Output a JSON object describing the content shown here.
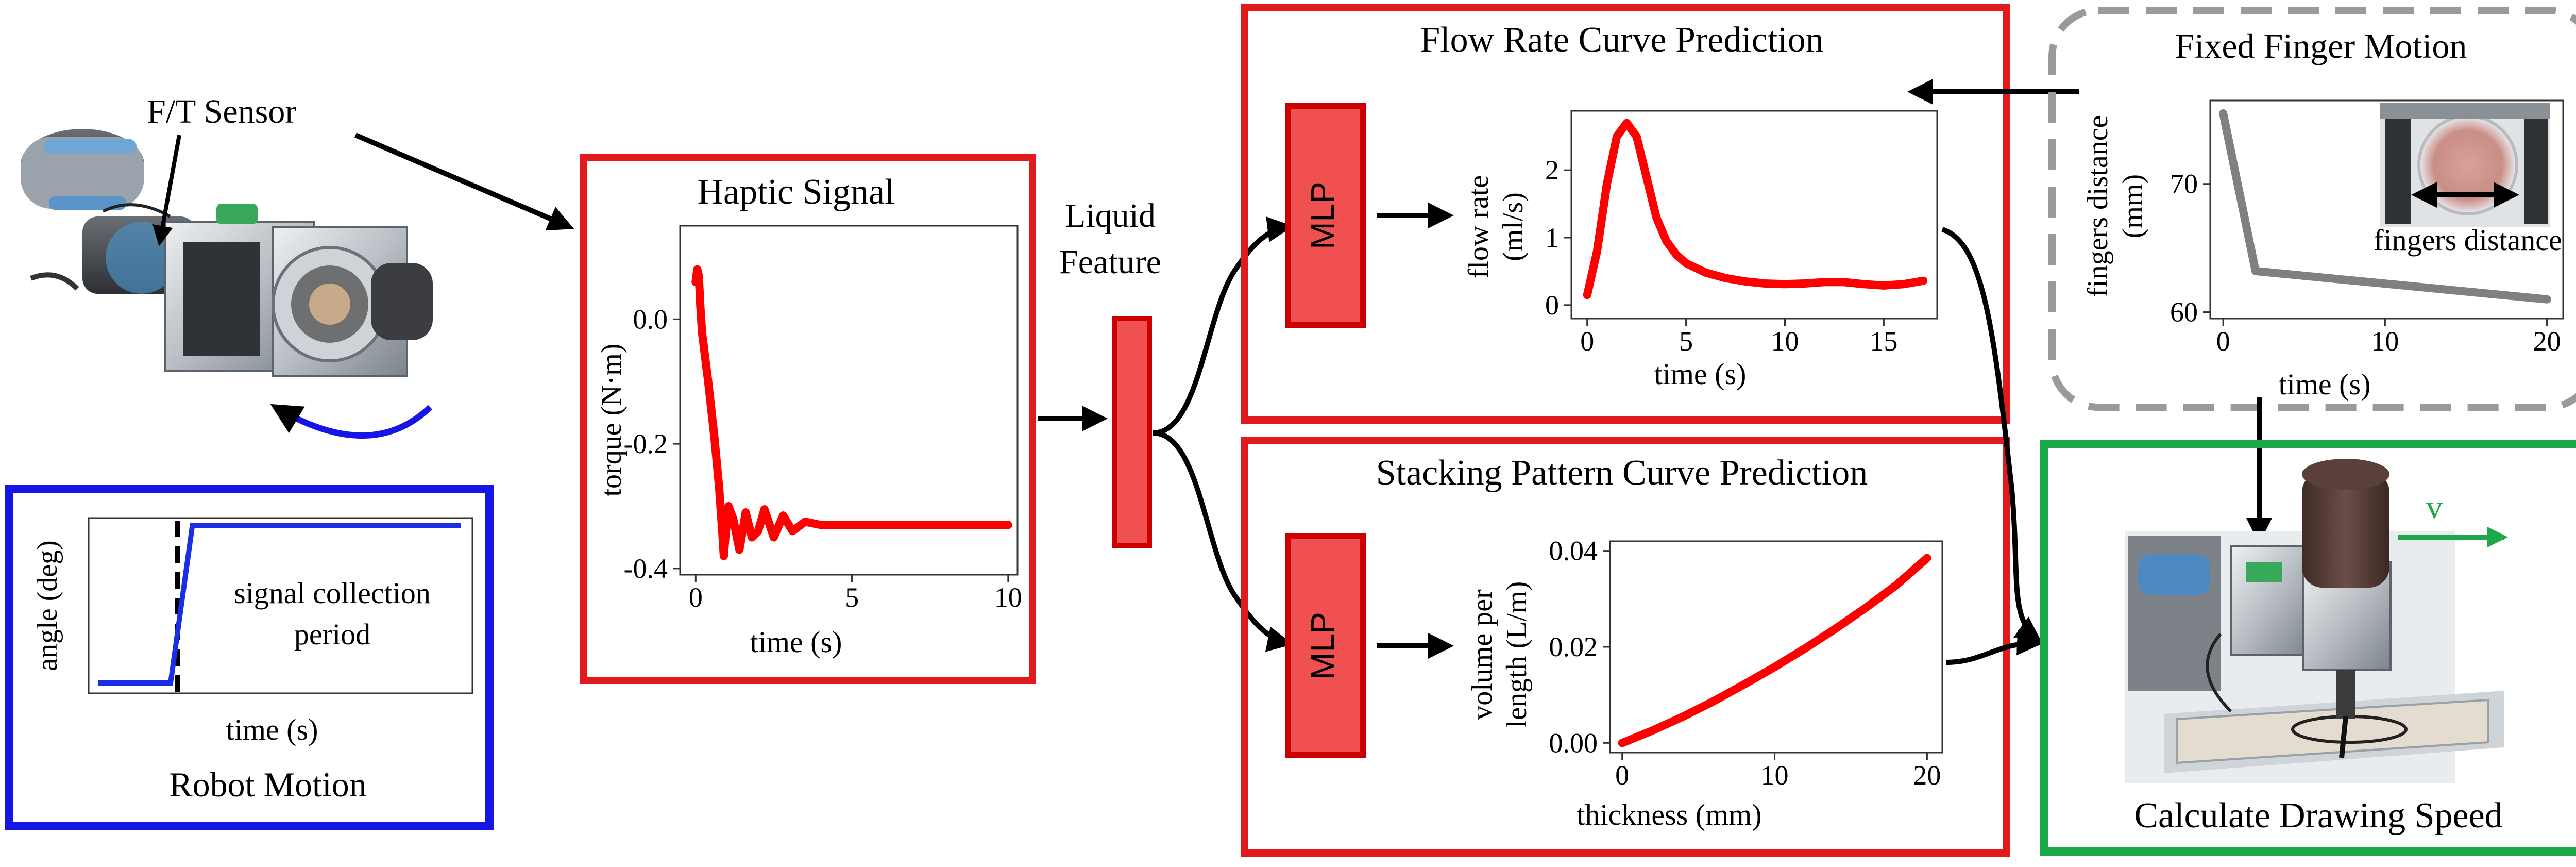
{
  "robot": {
    "sensor_label": "F/T Sensor",
    "motion_box": {
      "title": "Robot Motion",
      "ylabel": "angle (deg)",
      "xlabel": "time (s)",
      "annotation_line1": "signal collection",
      "annotation_line2": "period",
      "border_color": "#1515e6",
      "curve_color": "#1a2ee6"
    }
  },
  "haptic": {
    "title": "Haptic Signal",
    "border_color": "#e31a1c",
    "curve_color": "#ff0000"
  },
  "liquid_feature": {
    "line1": "Liquid",
    "line2": "Feature",
    "fill": "#f05050"
  },
  "flow_rate": {
    "title": "Flow Rate Curve Prediction",
    "mlp_label": "MLP",
    "border_color": "#e31a1c"
  },
  "stacking": {
    "title": "Stacking Pattern Curve Prediction",
    "mlp_label": "MLP",
    "border_color": "#e31a1c"
  },
  "finger": {
    "title": "Fixed Finger Motion",
    "inset_label": "fingers distance",
    "border_color": "#9a9a9a",
    "curve_color": "#808080"
  },
  "drawing": {
    "title": "Calculate Drawing Speed",
    "velocity_label": "v",
    "border_color": "#1fa84a",
    "arrow_color": "#1fa84a"
  },
  "chart_data": [
    {
      "id": "haptic",
      "type": "line",
      "xlabel": "time (s)",
      "ylabel": "torque (N·m)",
      "xlim": [
        -0.5,
        10.3
      ],
      "ylim": [
        -0.41,
        0.15
      ],
      "xticks": [
        "0",
        "5",
        "10"
      ],
      "yticks": [
        "0.0",
        "-0.2",
        "-0.4"
      ],
      "series": [
        {
          "x": [
            0,
            0.05,
            0.1,
            0.15,
            0.2,
            0.3,
            0.4,
            0.6,
            0.75,
            0.85,
            0.9,
            0.95,
            1.05,
            1.2,
            1.4,
            1.6,
            1.8,
            2.0,
            2.2,
            2.5,
            2.8,
            3.1,
            3.5,
            4.0,
            5.0,
            6.0,
            7.0,
            8.0,
            9.0,
            10.0
          ],
          "y": [
            0.06,
            0.08,
            0.07,
            0.02,
            -0.02,
            -0.06,
            -0.1,
            -0.19,
            -0.27,
            -0.34,
            -0.38,
            -0.35,
            -0.3,
            -0.32,
            -0.37,
            -0.31,
            -0.35,
            -0.34,
            -0.305,
            -0.35,
            -0.315,
            -0.34,
            -0.325,
            -0.33,
            -0.33,
            -0.33,
            -0.33,
            -0.33,
            -0.33,
            -0.33
          ]
        }
      ]
    },
    {
      "id": "robot_motion",
      "type": "line",
      "xlabel": "time (s)",
      "ylabel": "angle (deg)",
      "series": [
        {
          "x": [
            0,
            0.2,
            0.26,
            1.0
          ],
          "y": [
            0,
            0,
            1,
            1
          ]
        }
      ]
    },
    {
      "id": "flow_rate",
      "type": "line",
      "xlabel": "time (s)",
      "ylabel": "flow rate (ml/s)",
      "xlim": [
        -0.8,
        17.7
      ],
      "ylim": [
        -0.2,
        2.88
      ],
      "xticks": [
        "0",
        "5",
        "10",
        "15"
      ],
      "yticks": [
        "0",
        "1",
        "2"
      ],
      "series": [
        {
          "x": [
            0,
            0.5,
            1.0,
            1.5,
            2.0,
            2.5,
            3.0,
            3.5,
            4.0,
            4.5,
            5.0,
            6.0,
            7.0,
            8.0,
            9.0,
            10.0,
            11.0,
            12.0,
            13.0,
            14.0,
            15.0,
            16.0,
            17.0
          ],
          "y": [
            0.15,
            0.8,
            1.8,
            2.5,
            2.7,
            2.5,
            1.9,
            1.3,
            0.95,
            0.75,
            0.62,
            0.48,
            0.4,
            0.35,
            0.32,
            0.31,
            0.32,
            0.34,
            0.34,
            0.31,
            0.29,
            0.31,
            0.36
          ]
        }
      ]
    },
    {
      "id": "stacking",
      "type": "line",
      "xlabel": "thickness (mm)",
      "ylabel": "volume per length (L/m)",
      "xlim": [
        -0.8,
        21.0
      ],
      "ylim": [
        -0.002,
        0.042
      ],
      "xticks": [
        "0",
        "10",
        "20"
      ],
      "yticks": [
        "0.00",
        "0.02",
        "0.04"
      ],
      "series": [
        {
          "x": [
            0,
            2,
            4,
            6,
            8,
            10,
            12,
            14,
            16,
            18,
            20
          ],
          "y": [
            0.0,
            0.0026,
            0.0055,
            0.0087,
            0.0122,
            0.0158,
            0.0197,
            0.0238,
            0.0282,
            0.0329,
            0.0385
          ]
        }
      ]
    },
    {
      "id": "fingers_distance",
      "type": "line",
      "xlabel": "time (s)",
      "ylabel": "fingers distance (mm)",
      "xlim": [
        -0.8,
        21.0
      ],
      "ylim": [
        59.5,
        76.5
      ],
      "xticks": [
        "0",
        "10",
        "20"
      ],
      "yticks": [
        "60",
        "70"
      ],
      "series": [
        {
          "x": [
            0,
            2,
            20
          ],
          "y": [
            75.5,
            63.2,
            61
          ]
        }
      ]
    }
  ]
}
